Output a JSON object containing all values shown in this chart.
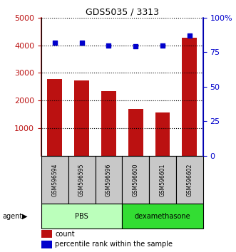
{
  "title": "GDS5035 / 3313",
  "samples": [
    "GSM596594",
    "GSM596595",
    "GSM596596",
    "GSM596600",
    "GSM596601",
    "GSM596602"
  ],
  "counts": [
    2780,
    2720,
    2340,
    1700,
    1560,
    4270
  ],
  "percentile_ranks": [
    82,
    82,
    80,
    79,
    80,
    87
  ],
  "ylim_left": [
    0,
    5000
  ],
  "ylim_right": [
    0,
    100
  ],
  "yticks_left": [
    1000,
    2000,
    3000,
    4000,
    5000
  ],
  "ytick_labels_right": [
    "0",
    "25",
    "50",
    "75",
    "100%"
  ],
  "bar_color": "#bb1111",
  "dot_color": "#0000cc",
  "sample_box_color": "#c8c8c8",
  "groups": [
    {
      "label": "PBS",
      "start": 0,
      "end": 3,
      "color": "#bbffbb"
    },
    {
      "label": "dexamethasone",
      "start": 3,
      "end": 6,
      "color": "#33dd33"
    }
  ],
  "agent_label": "agent",
  "legend_count_label": "count",
  "legend_pct_label": "percentile rank within the sample",
  "bar_width": 0.55,
  "fig_width": 3.31,
  "fig_height": 3.54,
  "dpi": 100
}
